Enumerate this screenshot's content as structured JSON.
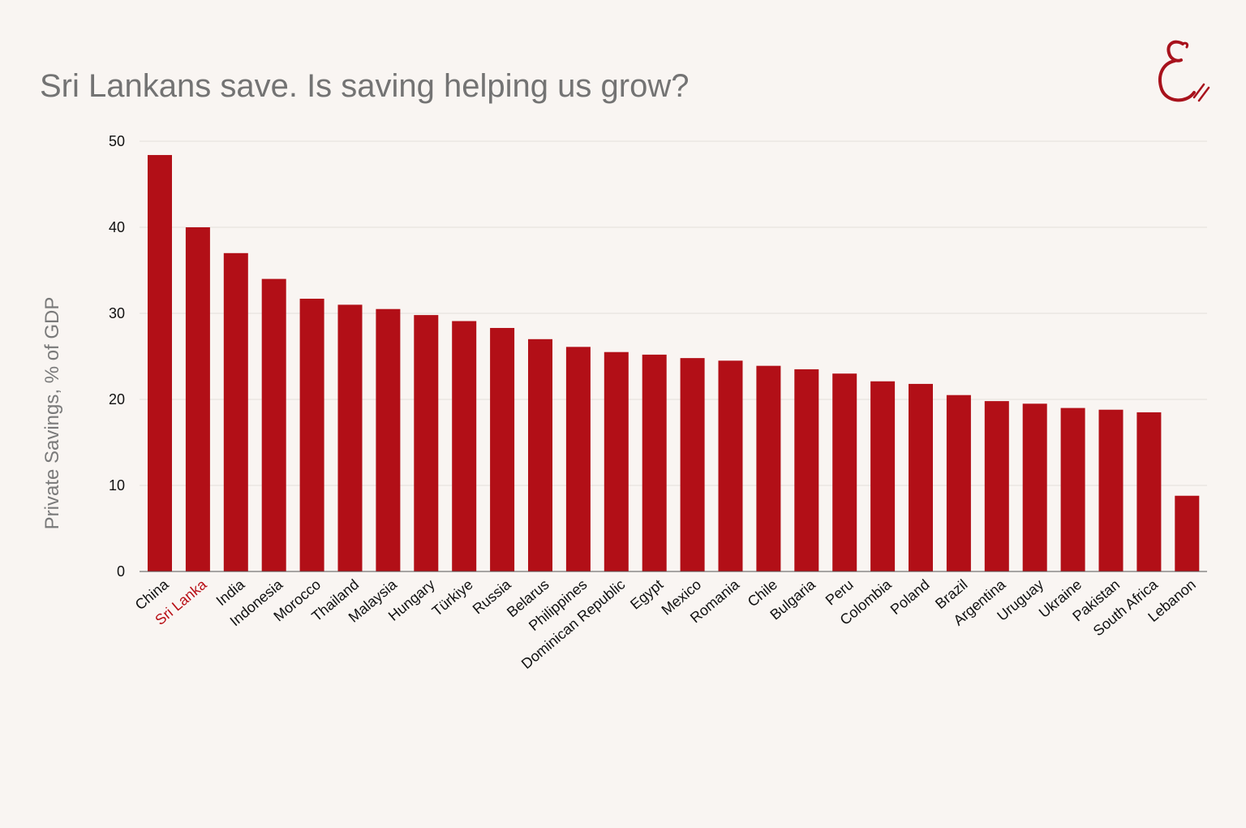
{
  "header": {
    "title": "Sri Lankans save. Is saving helping us grow?"
  },
  "logo": {
    "icon": "script-e-logo-icon",
    "color": "#a8121c"
  },
  "colors": {
    "bar": "#b20f17",
    "highlight_label": "#b80f16",
    "background": "#f9f5f2"
  },
  "chart_data": {
    "type": "bar",
    "title": "Sri Lankans save. Is saving helping us grow?",
    "xlabel": "",
    "ylabel": "Private Savings, % of GDP",
    "ylim": [
      0,
      50
    ],
    "yticks": [
      0,
      10,
      20,
      30,
      40,
      50
    ],
    "grid": true,
    "highlight_category": "Sri Lanka",
    "categories": [
      "China",
      "Sri Lanka",
      "India",
      "Indonesia",
      "Morocco",
      "Thailand",
      "Malaysia",
      "Hungary",
      "Türkiye",
      "Russia",
      "Belarus",
      "Philippines",
      "Dominican Republic",
      "Egypt",
      "Mexico",
      "Romania",
      "Chile",
      "Bulgaria",
      "Peru",
      "Colombia",
      "Poland",
      "Brazil",
      "Argentina",
      "Uruguay",
      "Ukraine",
      "Pakistan",
      "South Africa",
      "Lebanon"
    ],
    "values": [
      48.4,
      40.0,
      37.0,
      34.0,
      31.7,
      31.0,
      30.5,
      29.8,
      29.1,
      28.3,
      27.0,
      26.1,
      25.5,
      25.2,
      24.8,
      24.5,
      23.9,
      23.5,
      23.0,
      22.1,
      21.8,
      20.5,
      19.8,
      19.5,
      19.0,
      18.8,
      18.5,
      8.8
    ]
  }
}
